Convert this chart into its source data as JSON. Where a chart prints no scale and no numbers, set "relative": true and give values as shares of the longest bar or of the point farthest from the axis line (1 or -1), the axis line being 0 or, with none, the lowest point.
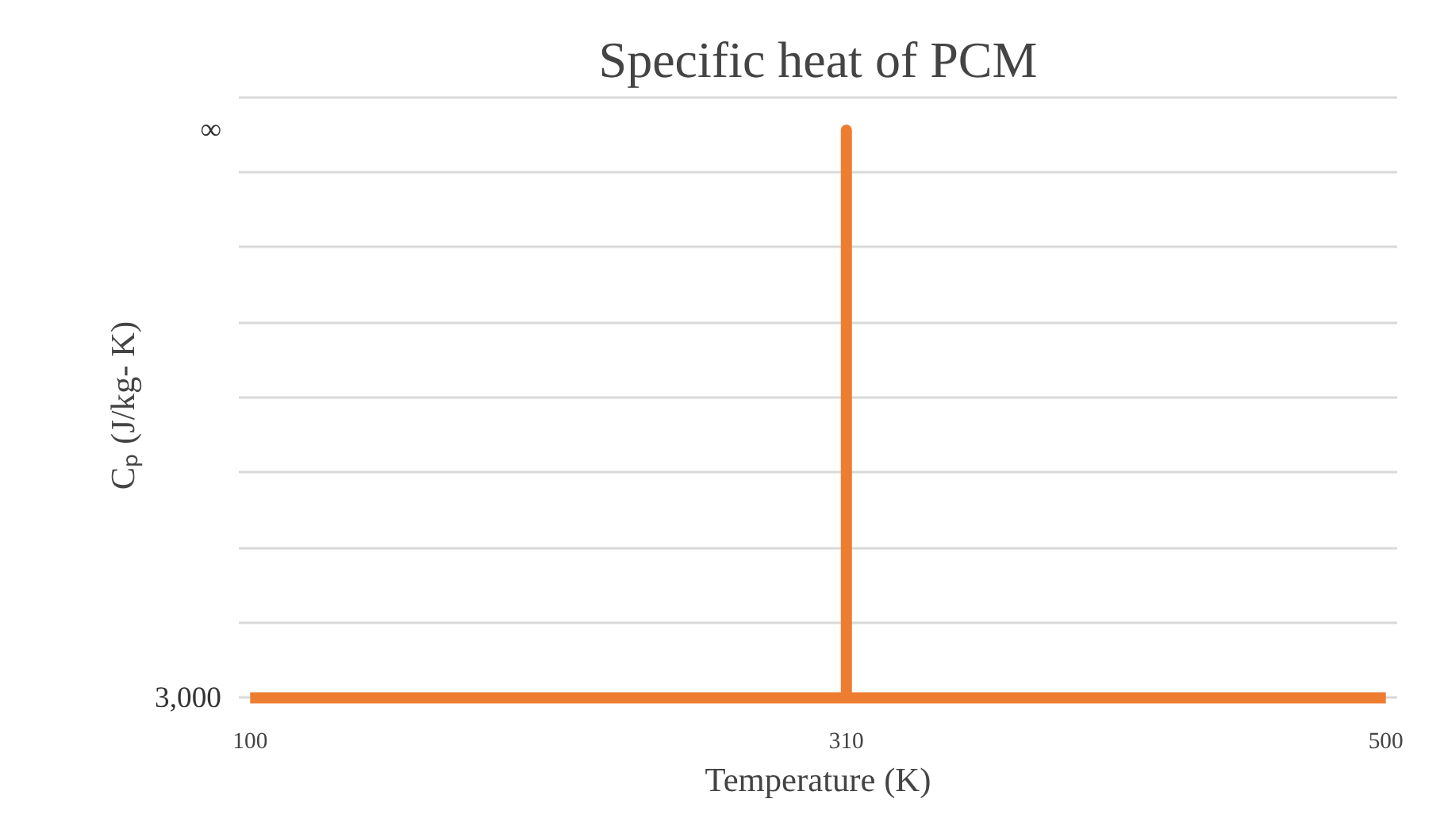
{
  "chart_data": {
    "type": "line",
    "title": "Specific heat of PCM",
    "xlabel": "Temperature (K)",
    "ylabel": "Cₚ (J/kg- K)",
    "relative": true,
    "x": [
      100,
      310,
      310,
      310,
      500
    ],
    "series": [
      {
        "color": "#ed7d31",
        "values": [
          0,
          0,
          1,
          0,
          0
        ]
      }
    ],
    "xlim": [
      96,
      504
    ],
    "xticks": [
      100,
      310,
      500
    ],
    "annotations": [
      "3,000",
      "∞"
    ],
    "grid": "y",
    "marker": "none",
    "line_style": "solid"
  }
}
